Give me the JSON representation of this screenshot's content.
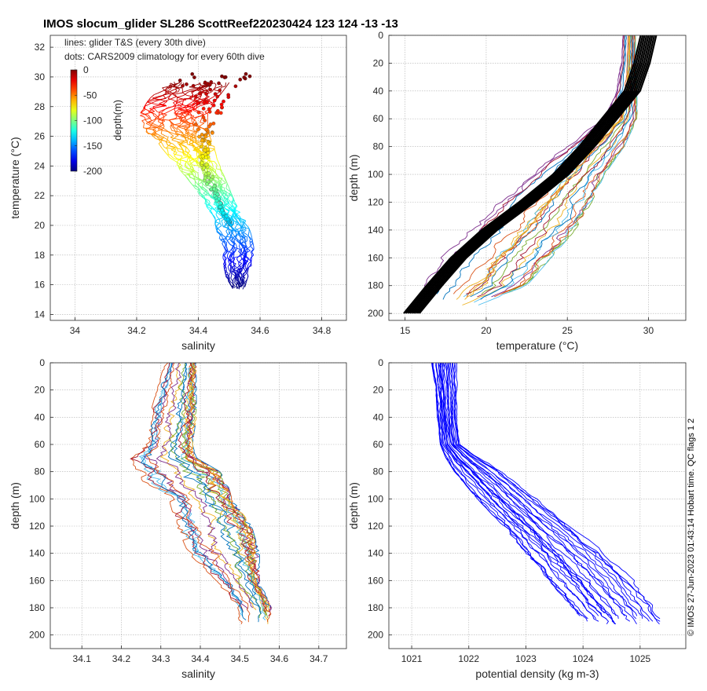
{
  "title": "IMOS slocum_glider SL286 ScottReef220230424 123  124  -13  -13",
  "credit": "© IMOS 27-Jun-2023 01:43:14 Hobart time. QC flags 1  2",
  "chart_data": [
    {
      "id": "ts",
      "type": "scatter",
      "title": "",
      "xlabel": "salinity",
      "ylabel": "temperature (°C)",
      "xlim": [
        33.92,
        34.88
      ],
      "ylim": [
        13.6,
        32.8
      ],
      "xticks": [
        34,
        34.2,
        34.4,
        34.6,
        34.8
      ],
      "yticks": [
        14,
        16,
        18,
        20,
        22,
        24,
        26,
        28,
        30,
        32
      ],
      "grid": true,
      "annotations": [
        "lines: glider T&S (every 30th dive)",
        "dots: CARS2009 climatology for every 60th dive"
      ],
      "colorbar": {
        "label": "depth(m)",
        "ticks": [
          0,
          -50,
          -100,
          -150,
          -200
        ],
        "range": [
          -200,
          0
        ],
        "colormap": "jet",
        "placement": "top-left"
      },
      "glider_envelope": {
        "temperature": [
          29.6,
          28.5,
          27.5,
          26.5,
          25.5,
          24.5,
          23.5,
          22.5,
          21.5,
          20.5,
          19.5,
          18.5,
          17.5,
          16.5,
          15.8
        ],
        "salinity_min": [
          34.3,
          34.24,
          34.21,
          34.22,
          34.27,
          34.31,
          34.35,
          34.39,
          34.42,
          34.45,
          34.46,
          34.48,
          34.48,
          34.49,
          34.51
        ],
        "salinity_max": [
          34.5,
          34.46,
          34.43,
          34.43,
          34.45,
          34.46,
          34.48,
          34.5,
          34.52,
          34.55,
          34.57,
          34.58,
          34.58,
          34.56,
          34.55
        ]
      },
      "climatology_envelope": {
        "temperature": [
          30.0,
          29.5,
          29.0,
          28.5,
          28.0,
          27.5,
          27.0,
          26.5,
          26.0,
          25.0,
          24.0,
          23.0,
          22.0,
          21.0,
          20.0
        ],
        "salinity_min": [
          34.34,
          34.34,
          34.37,
          34.38,
          34.39,
          34.39,
          34.39,
          34.39,
          34.4,
          34.4,
          34.41,
          34.42,
          34.45,
          34.47,
          34.5
        ],
        "salinity_max": [
          34.59,
          34.55,
          34.52,
          34.5,
          34.49,
          34.49,
          34.47,
          34.46,
          34.44,
          34.44,
          34.44,
          34.45,
          34.47,
          34.48,
          34.51
        ]
      }
    },
    {
      "id": "temp",
      "type": "line",
      "title": "",
      "xlabel": "temperature (°C)",
      "ylabel": "depth (m)",
      "xlim": [
        14,
        32.3
      ],
      "ylim": [
        205,
        0
      ],
      "xticks": [
        15,
        20,
        25,
        30
      ],
      "yticks": [
        0,
        20,
        40,
        60,
        80,
        100,
        120,
        140,
        160,
        180,
        200
      ],
      "grid": true,
      "climatology_mean": {
        "depth": [
          0,
          20,
          40,
          50,
          60,
          80,
          100,
          120,
          140,
          160,
          180,
          200
        ],
        "temperature": [
          30.0,
          29.6,
          29.0,
          28.3,
          27.6,
          26.2,
          24.6,
          22.5,
          20.2,
          18.3,
          16.8,
          15.4
        ]
      },
      "glider_envelope": {
        "depth": [
          0,
          20,
          40,
          60,
          80,
          100,
          120,
          140,
          160,
          180,
          195
        ],
        "temperature_min": [
          28.4,
          28.3,
          28.0,
          27.2,
          24.8,
          22.7,
          20.7,
          19.0,
          17.2,
          16.1,
          15.9
        ],
        "temperature_max": [
          29.2,
          29.2,
          29.3,
          29.3,
          28.5,
          27.3,
          26.5,
          25.5,
          24.0,
          22.5,
          19.3
        ]
      }
    },
    {
      "id": "sal",
      "type": "line",
      "title": "",
      "xlabel": "salinity",
      "ylabel": "depth (m)",
      "xlim": [
        34.02,
        34.77
      ],
      "ylim": [
        210,
        0
      ],
      "xticks": [
        34.1,
        34.2,
        34.3,
        34.4,
        34.5,
        34.6,
        34.7
      ],
      "yticks": [
        0,
        20,
        40,
        60,
        80,
        100,
        120,
        140,
        160,
        180,
        200
      ],
      "grid": true,
      "glider_envelope": {
        "depth": [
          0,
          20,
          40,
          60,
          70,
          80,
          90,
          100,
          120,
          140,
          160,
          180,
          193
        ],
        "salinity_min": [
          34.31,
          34.29,
          34.27,
          34.26,
          34.22,
          34.24,
          34.26,
          34.32,
          34.34,
          34.37,
          34.44,
          34.49,
          34.5
        ],
        "salinity_max": [
          34.39,
          34.39,
          34.39,
          34.38,
          34.39,
          34.45,
          34.47,
          34.48,
          34.53,
          34.55,
          34.55,
          34.58,
          34.58
        ]
      }
    },
    {
      "id": "dens",
      "type": "line",
      "title": "",
      "xlabel": "potential density (kg m-3)",
      "ylabel": "depth (m)",
      "xlim": [
        1020.6,
        1025.8
      ],
      "ylim": [
        210,
        0
      ],
      "xticks": [
        1021,
        1022,
        1023,
        1024,
        1025
      ],
      "yticks": [
        0,
        20,
        40,
        60,
        80,
        100,
        120,
        140,
        160,
        180,
        200
      ],
      "grid": true,
      "glider_envelope": {
        "depth": [
          0,
          20,
          40,
          60,
          70,
          80,
          100,
          120,
          140,
          160,
          180,
          194
        ],
        "density_min": [
          1021.35,
          1021.42,
          1021.45,
          1021.5,
          1021.6,
          1021.75,
          1022.15,
          1022.6,
          1023.0,
          1023.4,
          1023.8,
          1024.1
        ],
        "density_max": [
          1021.8,
          1021.8,
          1021.8,
          1021.85,
          1022.2,
          1022.6,
          1023.2,
          1023.8,
          1024.4,
          1024.9,
          1025.3,
          1025.5
        ]
      }
    }
  ],
  "colors": {
    "axis": "#262626",
    "grid": "#b0b0b0",
    "climatology_line": "#000000",
    "density_line": "#0000ff",
    "profile_palette": [
      "#0072bd",
      "#d95319",
      "#edb120",
      "#7e2f8e",
      "#77ac30",
      "#4dbeee",
      "#a2142f"
    ]
  }
}
